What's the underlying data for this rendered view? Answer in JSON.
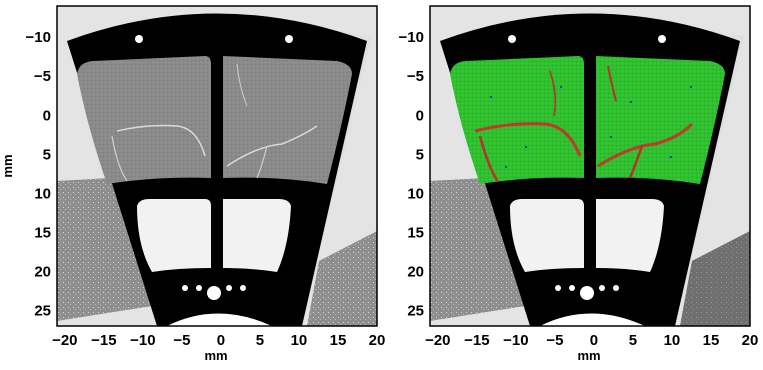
{
  "panels": [
    {
      "name": "left",
      "xlabel": "mm",
      "ylabel": "mm",
      "xticks": [
        "−20",
        "−15",
        "−10",
        "−5",
        "0",
        "5",
        "10",
        "15",
        "20"
      ],
      "yticks": [
        "−10",
        "−5",
        "0",
        "5",
        "10",
        "15",
        "20",
        "25"
      ],
      "xrange": [
        -21,
        20
      ],
      "yrange": [
        -14,
        27
      ],
      "segmentation_overlay": false
    },
    {
      "name": "right",
      "xlabel": "mm",
      "ylabel": "",
      "xticks": [
        "−20",
        "−15",
        "−10",
        "−5",
        "0",
        "5",
        "10",
        "15",
        "20"
      ],
      "yticks": [
        "−10",
        "−5",
        "0",
        "5",
        "10",
        "15",
        "20",
        "25"
      ],
      "xrange": [
        -21,
        20
      ],
      "yrange": [
        -14,
        27
      ],
      "segmentation_overlay": true
    }
  ],
  "colors": {
    "background_light": "#e4e4e4",
    "frame_black": "#000000",
    "tissue_gray": "#8c8c8c",
    "segment_green": "#2fc22f",
    "crack_red": "#c0392b",
    "pore_blue": "#1f3fa8"
  }
}
